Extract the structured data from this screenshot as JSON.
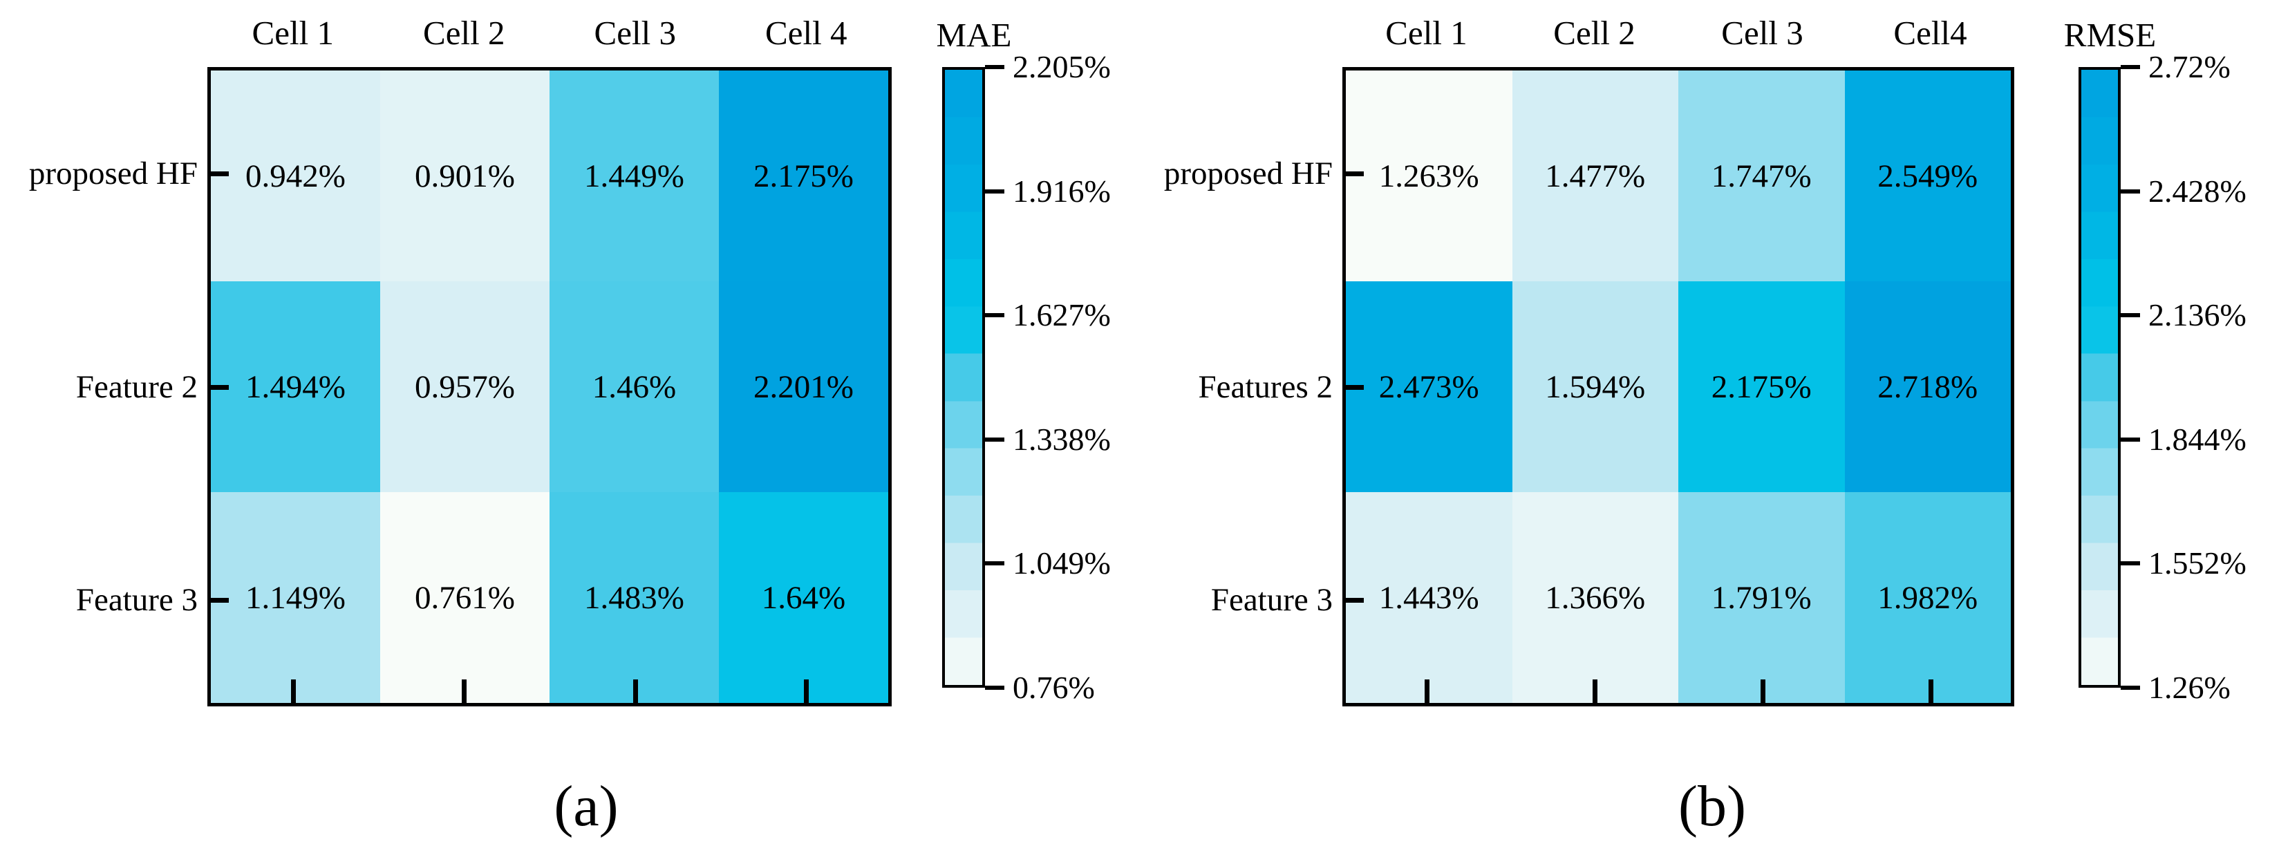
{
  "figure": {
    "background": "#ffffff"
  },
  "chart_data": [
    {
      "type": "heatmap",
      "panel_caption": "(a)",
      "colorbar_title": "MAE",
      "columns": [
        "Cell 1",
        "Cell 2",
        "Cell 3",
        "Cell 4"
      ],
      "rows": [
        "proposed HF",
        "Feature 2",
        "Feature 3"
      ],
      "values": [
        [
          0.942,
          0.901,
          1.449,
          2.175
        ],
        [
          1.494,
          0.957,
          1.46,
          2.201
        ],
        [
          1.149,
          0.761,
          1.483,
          1.64
        ]
      ],
      "cell_labels": [
        [
          "0.942%",
          "0.901%",
          "1.449%",
          "2.175%"
        ],
        [
          "1.494%",
          "0.957%",
          "1.46%",
          "2.201%"
        ],
        [
          "1.149%",
          "0.761%",
          "1.483%",
          "1.64%"
        ]
      ],
      "vmin": 0.76,
      "vmax": 2.205,
      "colorbar_ticks": [
        "2.205%",
        "1.916%",
        "1.627%",
        "1.338%",
        "1.049%",
        "0.76%"
      ],
      "legend_position": "right",
      "grid": false
    },
    {
      "type": "heatmap",
      "panel_caption": "(b)",
      "colorbar_title": "RMSE",
      "columns": [
        "Cell 1",
        "Cell 2",
        "Cell 3",
        "Cell4"
      ],
      "rows": [
        "proposed HF",
        "Features 2",
        "Feature 3"
      ],
      "values": [
        [
          1.263,
          1.477,
          1.747,
          2.549
        ],
        [
          2.473,
          1.594,
          2.175,
          2.718
        ],
        [
          1.443,
          1.366,
          1.791,
          1.982
        ]
      ],
      "cell_labels": [
        [
          "1.263%",
          "1.477%",
          "1.747%",
          "2.549%"
        ],
        [
          "2.473%",
          "1.594%",
          "2.175%",
          "2.718%"
        ],
        [
          "1.443%",
          "1.366%",
          "1.791%",
          "1.982%"
        ]
      ],
      "vmin": 1.26,
      "vmax": 2.72,
      "colorbar_ticks": [
        "2.72%",
        "2.428%",
        "2.136%",
        "1.844%",
        "1.552%",
        "1.26%"
      ],
      "legend_position": "right",
      "grid": false
    }
  ],
  "colors": {
    "background": "#ffffff",
    "text": "#000000",
    "border": "#000000",
    "colormap_stops": [
      [
        0.0,
        "#f8fcf9"
      ],
      [
        0.1,
        "#e1f3f6"
      ],
      [
        0.2,
        "#c7e9f3"
      ],
      [
        0.3,
        "#a0e1f0"
      ],
      [
        0.4,
        "#78d6ed"
      ],
      [
        0.5,
        "#46cae8"
      ],
      [
        0.57,
        "#0ac4e8"
      ],
      [
        0.65,
        "#00c0e7"
      ],
      [
        0.8,
        "#00afe4"
      ],
      [
        1.0,
        "#00a2e0"
      ]
    ]
  }
}
